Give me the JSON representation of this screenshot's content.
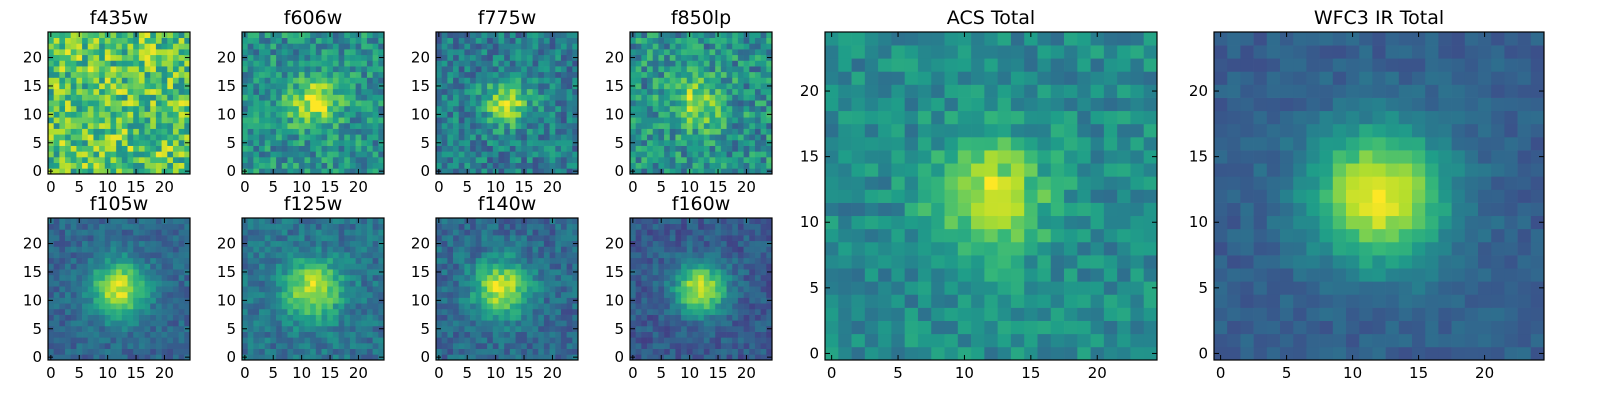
{
  "chart_data": [
    {
      "type": "heatmap",
      "title": "f435w",
      "colormap": "viridis",
      "grid": false,
      "xlim": [
        -0.5,
        24.5
      ],
      "ylim": [
        -0.5,
        24.5
      ],
      "x_ticks": [
        "0",
        "5",
        "10",
        "15",
        "20"
      ],
      "y_ticks": [
        "0",
        "5",
        "10",
        "15",
        "20"
      ],
      "model": {
        "peak_x": 12,
        "peak_y": 12,
        "amplitude": 0.0,
        "sigma": 3.0,
        "background": 0.72,
        "noise": 0.26
      }
    },
    {
      "type": "heatmap",
      "title": "f606w",
      "colormap": "viridis",
      "grid": false,
      "xlim": [
        -0.5,
        24.5
      ],
      "ylim": [
        -0.5,
        24.5
      ],
      "x_ticks": [
        "0",
        "5",
        "10",
        "15",
        "20"
      ],
      "y_ticks": [
        "0",
        "5",
        "10",
        "15",
        "20"
      ],
      "model": {
        "peak_x": 12,
        "peak_y": 12,
        "amplitude": 0.45,
        "sigma": 3.0,
        "background": 0.5,
        "noise": 0.2
      }
    },
    {
      "type": "heatmap",
      "title": "f775w",
      "colormap": "viridis",
      "grid": false,
      "xlim": [
        -0.5,
        24.5
      ],
      "ylim": [
        -0.5,
        24.5
      ],
      "x_ticks": [
        "0",
        "5",
        "10",
        "15",
        "20"
      ],
      "y_ticks": [
        "0",
        "5",
        "10",
        "15",
        "20"
      ],
      "model": {
        "peak_x": 12,
        "peak_y": 12,
        "amplitude": 0.5,
        "sigma": 2.8,
        "background": 0.42,
        "noise": 0.18
      }
    },
    {
      "type": "heatmap",
      "title": "f850lp",
      "colormap": "viridis",
      "grid": false,
      "xlim": [
        -0.5,
        24.5
      ],
      "ylim": [
        -0.5,
        24.5
      ],
      "x_ticks": [
        "0",
        "5",
        "10",
        "15",
        "20"
      ],
      "y_ticks": [
        "0",
        "5",
        "10",
        "15",
        "20"
      ],
      "model": {
        "peak_x": 11,
        "peak_y": 12,
        "amplitude": 0.35,
        "sigma": 3.2,
        "background": 0.5,
        "noise": 0.22
      }
    },
    {
      "type": "heatmap",
      "title": "f105w",
      "colormap": "viridis",
      "grid": false,
      "xlim": [
        -0.5,
        24.5
      ],
      "ylim": [
        -0.5,
        24.5
      ],
      "x_ticks": [
        "0",
        "5",
        "10",
        "15",
        "20"
      ],
      "y_ticks": [
        "0",
        "5",
        "10",
        "15",
        "20"
      ],
      "model": {
        "peak_x": 12,
        "peak_y": 12,
        "amplitude": 0.62,
        "sigma": 3.4,
        "background": 0.33,
        "noise": 0.1
      }
    },
    {
      "type": "heatmap",
      "title": "f125w",
      "colormap": "viridis",
      "grid": false,
      "xlim": [
        -0.5,
        24.5
      ],
      "ylim": [
        -0.5,
        24.5
      ],
      "x_ticks": [
        "0",
        "5",
        "10",
        "15",
        "20"
      ],
      "y_ticks": [
        "0",
        "5",
        "10",
        "15",
        "20"
      ],
      "model": {
        "peak_x": 12,
        "peak_y": 12,
        "amplitude": 0.55,
        "sigma": 3.6,
        "background": 0.38,
        "noise": 0.12
      }
    },
    {
      "type": "heatmap",
      "title": "f140w",
      "colormap": "viridis",
      "grid": false,
      "xlim": [
        -0.5,
        24.5
      ],
      "ylim": [
        -0.5,
        24.5
      ],
      "x_ticks": [
        "0",
        "5",
        "10",
        "15",
        "20"
      ],
      "y_ticks": [
        "0",
        "5",
        "10",
        "15",
        "20"
      ],
      "model": {
        "peak_x": 11,
        "peak_y": 12,
        "amplitude": 0.6,
        "sigma": 3.5,
        "background": 0.34,
        "noise": 0.12
      }
    },
    {
      "type": "heatmap",
      "title": "f160w",
      "colormap": "viridis",
      "grid": false,
      "xlim": [
        -0.5,
        24.5
      ],
      "ylim": [
        -0.5,
        24.5
      ],
      "x_ticks": [
        "0",
        "5",
        "10",
        "15",
        "20"
      ],
      "y_ticks": [
        "0",
        "5",
        "10",
        "15",
        "20"
      ],
      "model": {
        "peak_x": 12,
        "peak_y": 12,
        "amplitude": 0.66,
        "sigma": 3.2,
        "background": 0.28,
        "noise": 0.1
      }
    },
    {
      "type": "heatmap",
      "title": "ACS Total",
      "colormap": "viridis",
      "grid": false,
      "xlim": [
        -0.5,
        24.5
      ],
      "ylim": [
        -0.5,
        24.5
      ],
      "x_ticks": [
        "0",
        "5",
        "10",
        "15",
        "20"
      ],
      "y_ticks": [
        "0",
        "5",
        "10",
        "15",
        "20"
      ],
      "model": {
        "peak_x": 12,
        "peak_y": 12,
        "amplitude": 0.45,
        "sigma": 3.0,
        "background": 0.48,
        "noise": 0.13
      }
    },
    {
      "type": "heatmap",
      "title": "WFC3 IR Total",
      "colormap": "viridis",
      "grid": false,
      "xlim": [
        -0.5,
        24.5
      ],
      "ylim": [
        -0.5,
        24.5
      ],
      "x_ticks": [
        "0",
        "5",
        "10",
        "15",
        "20"
      ],
      "y_ticks": [
        "0",
        "5",
        "10",
        "15",
        "20"
      ],
      "model": {
        "peak_x": 12,
        "peak_y": 12,
        "amplitude": 0.68,
        "sigma": 3.6,
        "background": 0.3,
        "noise": 0.06
      }
    }
  ]
}
